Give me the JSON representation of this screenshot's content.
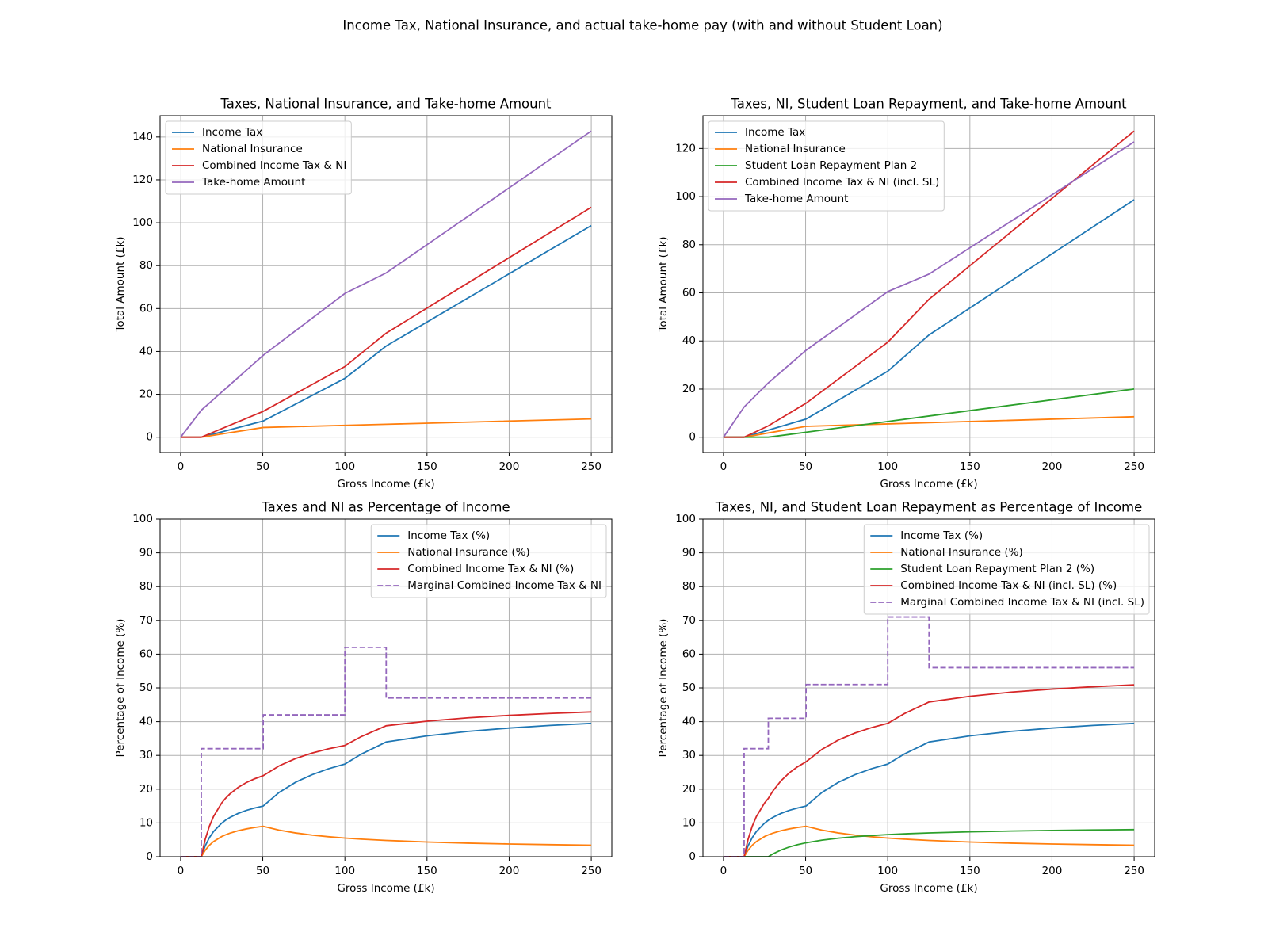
{
  "title": "Income Tax, National Insurance, and actual take-home pay (with and without Student Loan)",
  "chart_data": [
    {
      "type": "line",
      "title": "Taxes, National Insurance, and Take-home Amount",
      "xlabel": "Gross Income (£k)",
      "ylabel": "Total Amount (£k)",
      "x": [
        0,
        12.57,
        27.295,
        50.27,
        100,
        125.14,
        250
      ],
      "series": [
        {
          "name": "Income Tax",
          "color": "#1f77b4",
          "values": [
            0,
            0,
            2.95,
            7.54,
            27.43,
            42.52,
            98.7
          ]
        },
        {
          "name": "National Insurance",
          "color": "#ff7f0e",
          "values": [
            0,
            0,
            1.77,
            4.52,
            5.52,
            6.02,
            8.52
          ]
        },
        {
          "name": "Combined Income Tax & NI",
          "color": "#d62728",
          "values": [
            0,
            0,
            4.71,
            12.06,
            32.95,
            48.54,
            107.22
          ]
        },
        {
          "name": "Take-home Amount",
          "color": "#9467bd",
          "values": [
            0,
            12.57,
            22.58,
            38.21,
            67.05,
            76.6,
            142.78
          ]
        }
      ],
      "xlim": [
        -12.5,
        262.5
      ],
      "ylim": [
        -7.14,
        149.92
      ],
      "xticks": [
        0,
        50,
        100,
        150,
        200,
        250
      ],
      "yticks": [
        0,
        20,
        40,
        60,
        80,
        100,
        120,
        140
      ],
      "grid": true,
      "legend": "upper left"
    },
    {
      "type": "line",
      "title": "Taxes, NI, Student Loan Repayment, and Take-home Amount",
      "xlabel": "Gross Income (£k)",
      "ylabel": "Total Amount (£k)",
      "x": [
        0,
        12.57,
        27.295,
        50.27,
        100,
        125.14,
        250
      ],
      "series": [
        {
          "name": "Income Tax",
          "color": "#1f77b4",
          "values": [
            0,
            0,
            2.95,
            7.54,
            27.43,
            42.52,
            98.7
          ]
        },
        {
          "name": "National Insurance",
          "color": "#ff7f0e",
          "values": [
            0,
            0,
            1.77,
            4.52,
            5.52,
            6.02,
            8.52
          ]
        },
        {
          "name": "Student Loan Repayment Plan 2",
          "color": "#2ca02c",
          "values": [
            0,
            0,
            0,
            2.07,
            6.54,
            8.81,
            20.04
          ]
        },
        {
          "name": "Combined Income Tax & NI (incl. SL)",
          "color": "#d62728",
          "values": [
            0,
            0,
            4.71,
            14.13,
            39.49,
            57.35,
            127.26
          ]
        },
        {
          "name": "Take-home Amount",
          "color": "#9467bd",
          "values": [
            0,
            12.57,
            22.58,
            36.14,
            60.51,
            67.79,
            122.74
          ]
        }
      ],
      "xlim": [
        -12.5,
        262.5
      ],
      "ylim": [
        -6.36,
        133.62
      ],
      "xticks": [
        0,
        50,
        100,
        150,
        200,
        250
      ],
      "yticks": [
        0,
        20,
        40,
        60,
        80,
        100,
        120
      ],
      "grid": true,
      "legend": "upper left"
    },
    {
      "type": "line",
      "title": "Taxes and NI as Percentage of Income",
      "xlabel": "Gross Income (£k)",
      "ylabel": "Percentage of Income (%)",
      "x": [
        0,
        12.57,
        15,
        17.5,
        20,
        25,
        27.295,
        30,
        35,
        40,
        45,
        50.27,
        60,
        70,
        80,
        90,
        100,
        110,
        125.14,
        150,
        175,
        200,
        225,
        250
      ],
      "series": [
        {
          "name": "Income Tax (%)",
          "color": "#1f77b4",
          "values": [
            0,
            0,
            3.24,
            5.63,
            7.43,
            9.94,
            10.79,
            11.62,
            12.82,
            13.72,
            14.41,
            15.0,
            19.05,
            22.05,
            24.29,
            26.04,
            27.43,
            30.39,
            33.97,
            35.8,
            37.12,
            38.1,
            38.87,
            39.48
          ]
        },
        {
          "name": "National Insurance (%)",
          "color": "#ff7f0e",
          "values": [
            0,
            0,
            1.94,
            3.38,
            4.46,
            5.97,
            6.47,
            6.97,
            7.69,
            8.23,
            8.65,
            9.0,
            7.86,
            7.03,
            6.4,
            5.91,
            5.52,
            5.2,
            4.81,
            4.35,
            4.01,
            3.76,
            3.56,
            3.41
          ]
        },
        {
          "name": "Combined Income Tax & NI (%)",
          "color": "#d62728",
          "values": [
            0,
            0,
            5.18,
            9.01,
            11.89,
            15.91,
            17.26,
            18.59,
            20.51,
            21.95,
            23.06,
            24.0,
            26.91,
            29.08,
            30.69,
            31.95,
            32.95,
            35.59,
            38.78,
            40.15,
            41.13,
            41.86,
            42.43,
            42.89
          ]
        },
        {
          "name": "Marginal Combined Income Tax & NI",
          "color": "#9467bd",
          "linestyle": "dashed",
          "drawstyle": "steps-post",
          "values": [
            0,
            32,
            32,
            32,
            32,
            32,
            32,
            32,
            32,
            32,
            32,
            42,
            42,
            42,
            42,
            42,
            62,
            62,
            47,
            47,
            47,
            47,
            47,
            47
          ]
        }
      ],
      "xlim": [
        -12.5,
        262.5
      ],
      "ylim": [
        0,
        100
      ],
      "xticks": [
        0,
        50,
        100,
        150,
        200,
        250
      ],
      "yticks": [
        0,
        10,
        20,
        30,
        40,
        50,
        60,
        70,
        80,
        90,
        100
      ],
      "grid": true,
      "legend": "upper right"
    },
    {
      "type": "line",
      "title": "Taxes, NI, and Student Loan Repayment as Percentage of Income",
      "xlabel": "Gross Income (£k)",
      "ylabel": "Percentage of Income (%)",
      "x": [
        0,
        12.57,
        15,
        17.5,
        20,
        25,
        27.295,
        30,
        35,
        40,
        45,
        50.27,
        60,
        70,
        80,
        90,
        100,
        110,
        125.14,
        150,
        175,
        200,
        225,
        250
      ],
      "series": [
        {
          "name": "Income Tax (%)",
          "color": "#1f77b4",
          "values": [
            0,
            0,
            3.24,
            5.63,
            7.43,
            9.94,
            10.79,
            11.62,
            12.82,
            13.72,
            14.41,
            15.0,
            19.05,
            22.05,
            24.29,
            26.04,
            27.43,
            30.39,
            33.97,
            35.8,
            37.12,
            38.1,
            38.87,
            39.48
          ]
        },
        {
          "name": "National Insurance (%)",
          "color": "#ff7f0e",
          "values": [
            0,
            0,
            1.94,
            3.38,
            4.46,
            5.97,
            6.47,
            6.97,
            7.69,
            8.23,
            8.65,
            9.0,
            7.86,
            7.03,
            6.4,
            5.91,
            5.52,
            5.2,
            4.81,
            4.35,
            4.01,
            3.76,
            3.56,
            3.41
          ]
        },
        {
          "name": "Student Loan Repayment Plan 2 (%)",
          "color": "#2ca02c",
          "values": [
            0,
            0,
            0,
            0,
            0,
            0,
            0,
            0.81,
            1.98,
            2.86,
            3.54,
            4.11,
            4.91,
            5.49,
            5.93,
            6.27,
            6.54,
            6.77,
            7.04,
            7.36,
            7.6,
            7.77,
            7.91,
            8.02
          ]
        },
        {
          "name": "Combined Income Tax & NI (incl. SL) (%)",
          "color": "#d62728",
          "values": [
            0,
            0,
            5.18,
            9.01,
            11.89,
            15.91,
            17.26,
            19.4,
            22.49,
            24.81,
            26.6,
            28.11,
            31.82,
            34.57,
            36.62,
            38.22,
            39.49,
            42.36,
            45.82,
            47.51,
            48.73,
            49.63,
            50.34,
            50.91
          ]
        },
        {
          "name": "Marginal Combined Income Tax & NI (incl. SL)",
          "color": "#9467bd",
          "linestyle": "dashed",
          "drawstyle": "steps-post",
          "values": [
            0,
            32,
            32,
            32,
            32,
            32,
            41,
            41,
            41,
            41,
            41,
            51,
            51,
            51,
            51,
            51,
            71,
            71,
            56,
            56,
            56,
            56,
            56,
            56
          ]
        }
      ],
      "xlim": [
        -12.5,
        262.5
      ],
      "ylim": [
        0,
        100
      ],
      "xticks": [
        0,
        50,
        100,
        150,
        200,
        250
      ],
      "yticks": [
        0,
        10,
        20,
        30,
        40,
        50,
        60,
        70,
        80,
        90,
        100
      ],
      "grid": true,
      "legend": "upper right"
    }
  ]
}
